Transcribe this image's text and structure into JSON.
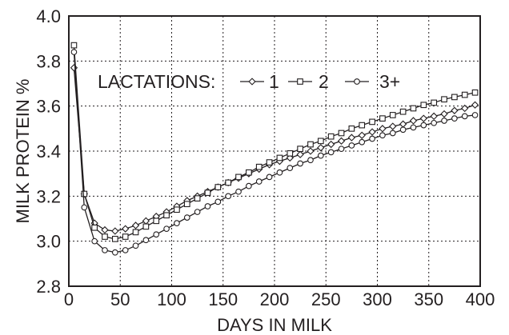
{
  "chart_data": {
    "type": "line",
    "xlabel": "DAYS IN MILK",
    "ylabel": "MILK PROTEIN %",
    "xlim": [
      0,
      400
    ],
    "ylim": [
      2.8,
      4.0
    ],
    "x_ticks": [
      0,
      50,
      100,
      150,
      200,
      250,
      300,
      350,
      400
    ],
    "y_ticks": [
      2.8,
      3.0,
      3.2,
      3.4,
      3.6,
      3.8,
      4.0
    ],
    "x_tick_labels": [
      "0",
      "50",
      "100",
      "150",
      "200",
      "250",
      "300",
      "350",
      "400"
    ],
    "y_tick_labels": [
      "2.8",
      "3.0",
      "3.2",
      "3.4",
      "3.6",
      "3.8",
      "4.0"
    ],
    "grid": true,
    "legend": {
      "title": "LACTATIONS:",
      "placement": "upper-left",
      "entries": [
        {
          "label": "1",
          "marker": "diamond"
        },
        {
          "label": "2",
          "marker": "square"
        },
        {
          "label": "3+",
          "marker": "circle"
        }
      ]
    },
    "series": [
      {
        "name": "1",
        "marker": "diamond",
        "x": [
          5,
          15,
          25,
          35,
          45,
          55,
          65,
          75,
          85,
          95,
          105,
          115,
          125,
          135,
          145,
          155,
          165,
          175,
          185,
          195,
          205,
          215,
          225,
          235,
          245,
          255,
          265,
          275,
          285,
          295,
          305,
          315,
          325,
          335,
          345,
          355,
          365,
          375,
          385,
          395
        ],
        "values": [
          3.77,
          3.21,
          3.08,
          3.05,
          3.045,
          3.055,
          3.07,
          3.09,
          3.11,
          3.13,
          3.155,
          3.18,
          3.2,
          3.22,
          3.24,
          3.26,
          3.28,
          3.3,
          3.32,
          3.34,
          3.355,
          3.37,
          3.385,
          3.4,
          3.415,
          3.43,
          3.445,
          3.46,
          3.47,
          3.485,
          3.5,
          3.51,
          3.52,
          3.535,
          3.545,
          3.555,
          3.565,
          3.58,
          3.59,
          3.605
        ]
      },
      {
        "name": "2",
        "marker": "square",
        "x": [
          5,
          15,
          25,
          35,
          45,
          55,
          65,
          75,
          85,
          95,
          105,
          115,
          125,
          135,
          145,
          155,
          165,
          175,
          185,
          195,
          205,
          215,
          225,
          235,
          245,
          255,
          265,
          275,
          285,
          295,
          305,
          315,
          325,
          335,
          345,
          355,
          365,
          375,
          385,
          395
        ],
        "values": [
          3.87,
          3.21,
          3.06,
          3.02,
          3.01,
          3.02,
          3.04,
          3.065,
          3.09,
          3.115,
          3.14,
          3.165,
          3.19,
          3.215,
          3.24,
          3.26,
          3.285,
          3.305,
          3.33,
          3.35,
          3.37,
          3.39,
          3.41,
          3.43,
          3.445,
          3.465,
          3.48,
          3.5,
          3.515,
          3.53,
          3.545,
          3.56,
          3.575,
          3.59,
          3.605,
          3.615,
          3.63,
          3.64,
          3.65,
          3.66
        ]
      },
      {
        "name": "3+",
        "marker": "circle",
        "x": [
          5,
          15,
          25,
          35,
          45,
          55,
          65,
          75,
          85,
          95,
          105,
          115,
          125,
          135,
          145,
          155,
          165,
          175,
          185,
          195,
          205,
          215,
          225,
          235,
          245,
          255,
          265,
          275,
          285,
          295,
          305,
          315,
          325,
          335,
          345,
          355,
          365,
          375,
          385,
          395
        ],
        "values": [
          3.84,
          3.15,
          3.0,
          2.96,
          2.95,
          2.96,
          2.98,
          3.005,
          3.03,
          3.055,
          3.08,
          3.105,
          3.13,
          3.155,
          3.175,
          3.2,
          3.22,
          3.245,
          3.265,
          3.285,
          3.305,
          3.325,
          3.345,
          3.36,
          3.38,
          3.395,
          3.41,
          3.425,
          3.44,
          3.455,
          3.47,
          3.48,
          3.495,
          3.505,
          3.515,
          3.525,
          3.535,
          3.545,
          3.555,
          3.56
        ]
      }
    ]
  }
}
